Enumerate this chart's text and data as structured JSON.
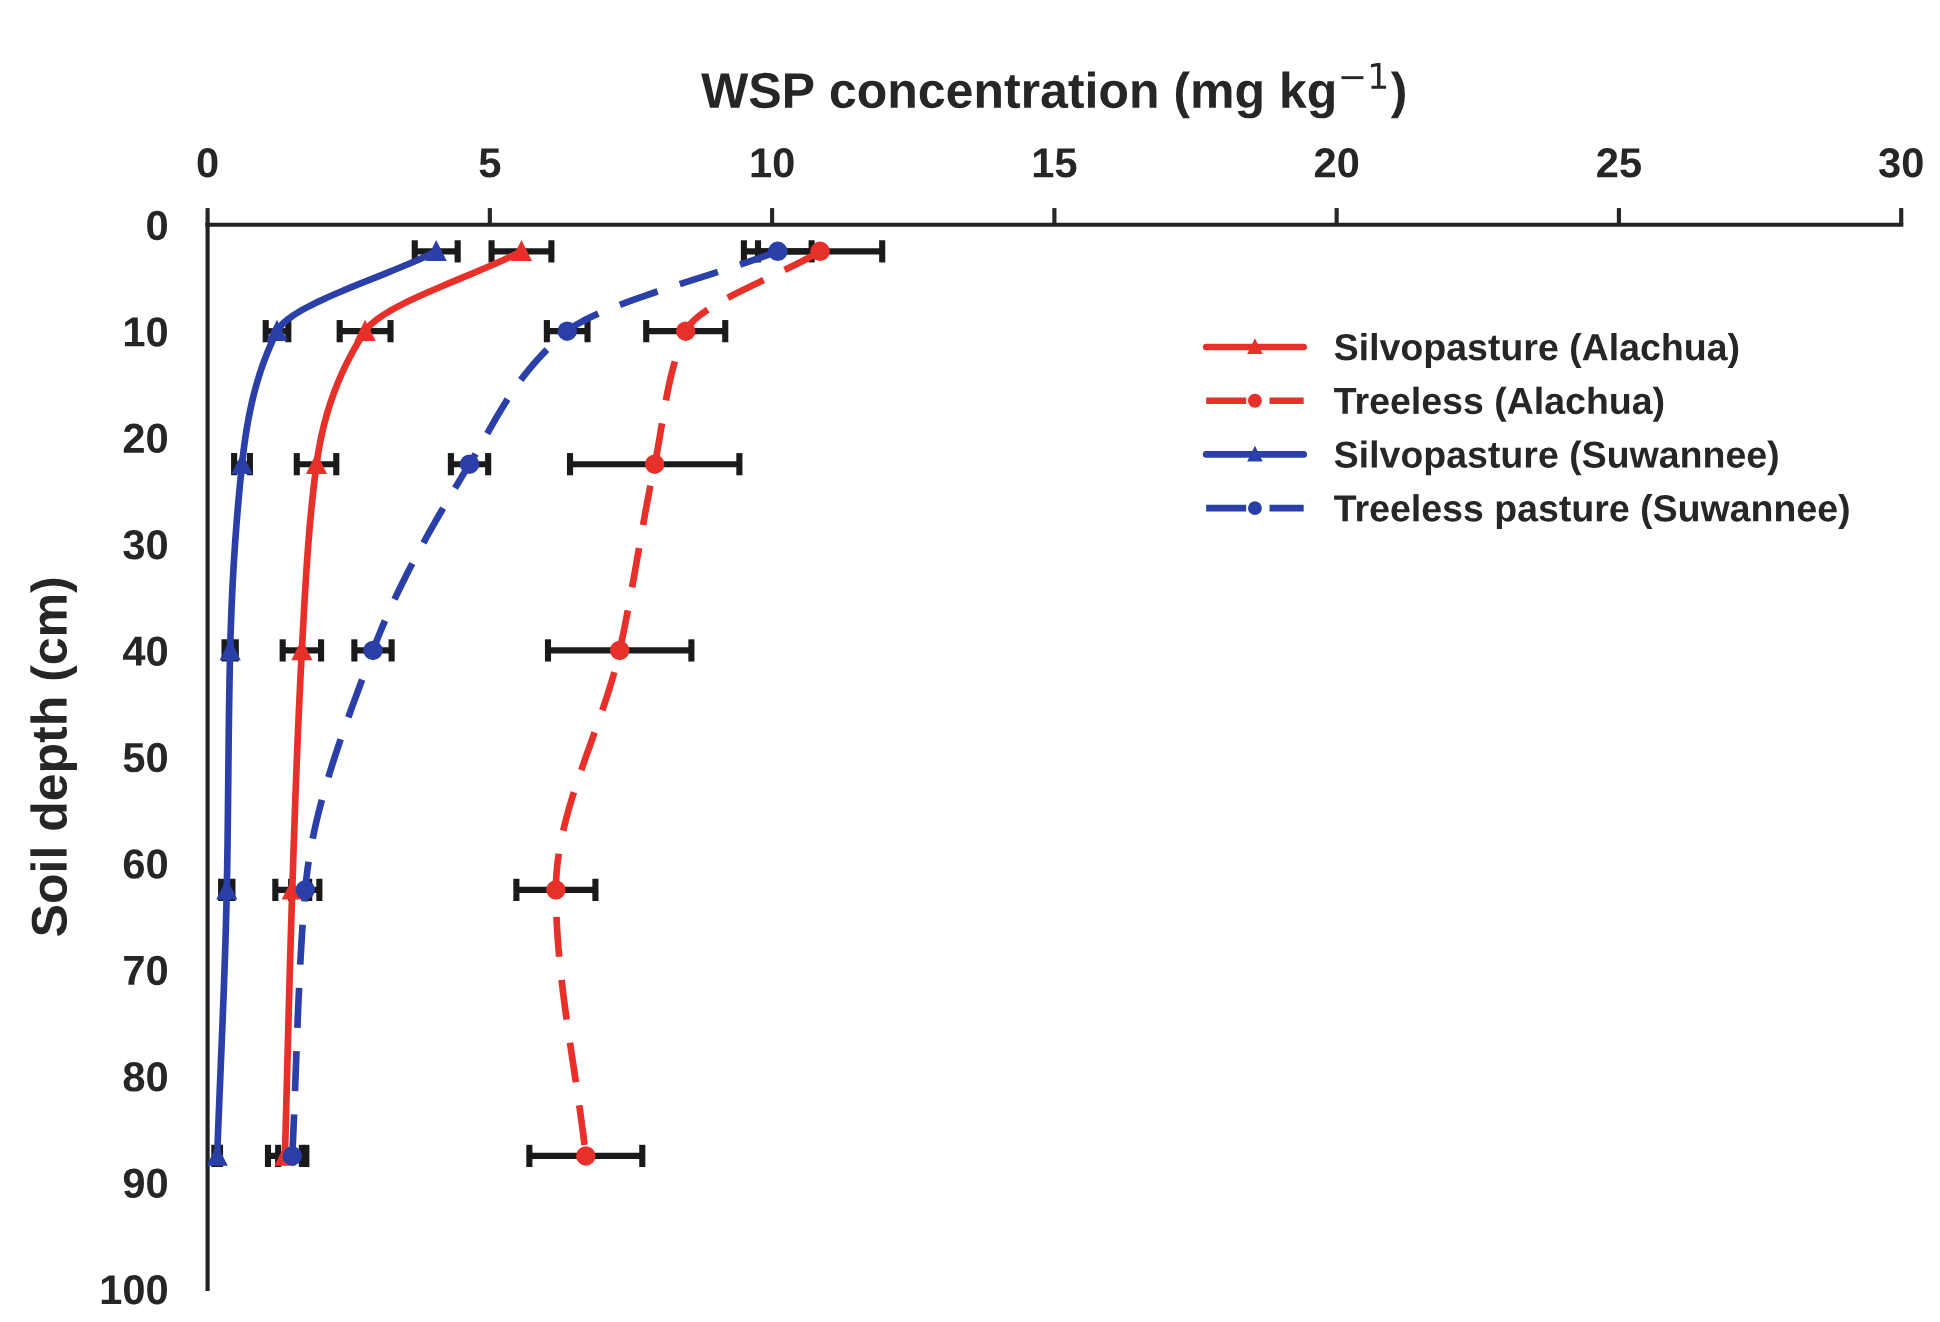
{
  "chart_data": {
    "type": "line",
    "xlabel": "WSP concentration (mg kg$^{−1}$)",
    "ylabel": "Soil depth (cm)",
    "xlim": [
      0,
      30
    ],
    "xticks": [
      0,
      5,
      10,
      15,
      20,
      25,
      30
    ],
    "ylim": [
      100,
      0
    ],
    "yticks": [
      0,
      10,
      20,
      30,
      40,
      50,
      60,
      70,
      80,
      90,
      100
    ],
    "grid": false,
    "legend": "top right",
    "series": [
      {
        "name": "Silvopasture (Alachua)",
        "color": "#e8302a",
        "line_style": "solid",
        "marker": "triangle",
        "x": [
          5.56,
          2.79,
          1.93,
          1.67,
          1.5,
          1.37
        ],
        "values": [
          2.5,
          10,
          22.5,
          40,
          62.5,
          87.5
        ],
        "xerrors": [
          0.53,
          0.45,
          0.35,
          0.34,
          0.3,
          0.3
        ]
      },
      {
        "name": "Treeless (Alachua)",
        "color": "#e8302a",
        "line_style": "dashed",
        "marker": "circle",
        "x": [
          10.85,
          8.47,
          7.92,
          7.3,
          6.17,
          6.7
        ],
        "values": [
          2.5,
          10,
          22.5,
          40,
          62.5,
          87.5
        ],
        "xerrors": [
          1.1,
          0.7,
          1.5,
          1.27,
          0.7,
          1.0
        ]
      },
      {
        "name": "Silvopasture (Suwannee)",
        "color": "#2b3fa8",
        "line_style": "solid",
        "marker": "triangle",
        "x": [
          4.05,
          1.23,
          0.61,
          0.4,
          0.34,
          0.17
        ],
        "values": [
          2.5,
          10,
          22.5,
          40,
          62.5,
          87.5
        ],
        "xerrors": [
          0.38,
          0.2,
          0.14,
          0.1,
          0.1,
          0.05
        ]
      },
      {
        "name": "Treeless pasture (Suwannee)",
        "color": "#2b3fa8",
        "line_style": "dashed",
        "marker": "circle",
        "x": [
          10.1,
          6.37,
          4.64,
          2.93,
          1.73,
          1.5
        ],
        "values": [
          2.5,
          10,
          22.5,
          40,
          62.5,
          87.5
        ],
        "xerrors": [
          0.6,
          0.36,
          0.33,
          0.33,
          0.25,
          0.25
        ]
      }
    ]
  }
}
